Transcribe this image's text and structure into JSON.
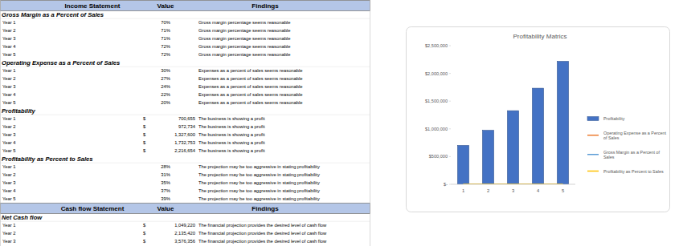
{
  "tables": [
    {
      "header": [
        "Income Statement",
        "Value",
        "Findings"
      ],
      "sections": [
        {
          "title": "Gross Margin as a Percent of Sales",
          "rows": [
            {
              "label": "Year 1",
              "value": "70%",
              "finding": "Gross margin percentage seems reasonable"
            },
            {
              "label": "Year 2",
              "value": "71%",
              "finding": "Gross margin percentage seems reasonable"
            },
            {
              "label": "Year 3",
              "value": "71%",
              "finding": "Gross margin percentage seems reasonable"
            },
            {
              "label": "Year 4",
              "value": "72%",
              "finding": "Gross margin percentage seems reasonable"
            },
            {
              "label": "Year 5",
              "value": "72%",
              "finding": "Gross margin percentage seems reasonable"
            }
          ]
        },
        {
          "title": "Operating Expense as a Percent of Sales",
          "rows": [
            {
              "label": "Year 1",
              "value": "30%",
              "finding": "Expenses as a percent of sales seems reasonable"
            },
            {
              "label": "Year 2",
              "value": "27%",
              "finding": "Expenses as a percent of sales seems reasonable"
            },
            {
              "label": "Year 3",
              "value": "24%",
              "finding": "Expenses as a percent of sales seems reasonable"
            },
            {
              "label": "Year 4",
              "value": "22%",
              "finding": "Expenses as a percent of sales seems reasonable"
            },
            {
              "label": "Year 5",
              "value": "20%",
              "finding": "Expenses as a percent of sales seems reasonable"
            }
          ]
        },
        {
          "title": "Profitability",
          "rows": [
            {
              "label": "Year 1",
              "currency": "$",
              "value": "700,655",
              "finding": "The business is showing a profit"
            },
            {
              "label": "Year 2",
              "currency": "$",
              "value": "972,734",
              "finding": "The business is showing a profit"
            },
            {
              "label": "Year 3",
              "currency": "$",
              "value": "1,327,600",
              "finding": "The business is showing a profit"
            },
            {
              "label": "Year 4",
              "currency": "$",
              "value": "1,732,753",
              "finding": "The business is showing a profit"
            },
            {
              "label": "Year 5",
              "currency": "$",
              "value": "2,216,654",
              "finding": "The business is showing a profit"
            }
          ]
        },
        {
          "title": "Profitability as Percent to Sales",
          "rows": [
            {
              "label": "Year 1",
              "value": "28%",
              "finding": "The projection may be too aggressive in stating profitability"
            },
            {
              "label": "Year 2",
              "value": "31%",
              "finding": "The projection may be too aggressive in stating profitability"
            },
            {
              "label": "Year 3",
              "value": "35%",
              "finding": "The projection may be too aggressive in stating profitability"
            },
            {
              "label": "Year 4",
              "value": "37%",
              "finding": "The projection may be too aggressive in stating profitability"
            },
            {
              "label": "Year 5",
              "value": "39%",
              "finding": "The projection may be too aggressive in stating profitability"
            }
          ]
        }
      ]
    },
    {
      "header": [
        "Cash flow Statement",
        "Value",
        "Findings"
      ],
      "sections": [
        {
          "title": "Net Cash flow",
          "rows": [
            {
              "label": "Year 1",
              "currency": "$",
              "value": "1,049,220",
              "finding": "The financial projection provides the desired level of cash flow"
            },
            {
              "label": "Year 2",
              "currency": "$",
              "value": "2,135,420",
              "finding": "The financial projection provides the desired level of cash flow"
            },
            {
              "label": "Year 3",
              "currency": "$",
              "value": "3,576,356",
              "finding": "The financial projection provides the desired level of cash flow"
            }
          ]
        }
      ]
    }
  ],
  "chart_data": {
    "type": "bar",
    "title": "Profitability Matrics",
    "categories": [
      "1",
      "2",
      "3",
      "4",
      "5"
    ],
    "series": [
      {
        "name": "Profitability",
        "type": "bar",
        "color": "#4472c4",
        "values": [
          700655,
          972734,
          1327600,
          1732753,
          2216654
        ]
      },
      {
        "name": "Operating Expense as a Percent of Sales",
        "type": "line",
        "color": "#ed7d31",
        "values": [
          0.3,
          0.27,
          0.24,
          0.22,
          0.2
        ]
      },
      {
        "name": "Gross Margin as a Percent of Sales",
        "type": "line",
        "color": "#5b9bd5",
        "values": [
          0.7,
          0.71,
          0.71,
          0.72,
          0.72
        ]
      },
      {
        "name": "Profitability as Percent to Sales",
        "type": "line",
        "color": "#ffc000",
        "values": [
          0.28,
          0.31,
          0.35,
          0.37,
          0.39
        ]
      }
    ],
    "ylim": [
      0,
      2500000
    ],
    "yticks": [
      {
        "value": 0,
        "label": "$-"
      },
      {
        "value": 500000,
        "label": "$500,000"
      },
      {
        "value": 1000000,
        "label": "$1,000,000"
      },
      {
        "value": 1500000,
        "label": "$1,500,000"
      },
      {
        "value": 2000000,
        "label": "$2,000,000"
      },
      {
        "value": 2500000,
        "label": "$2,500,000"
      }
    ],
    "grid": false,
    "legend": "right"
  }
}
